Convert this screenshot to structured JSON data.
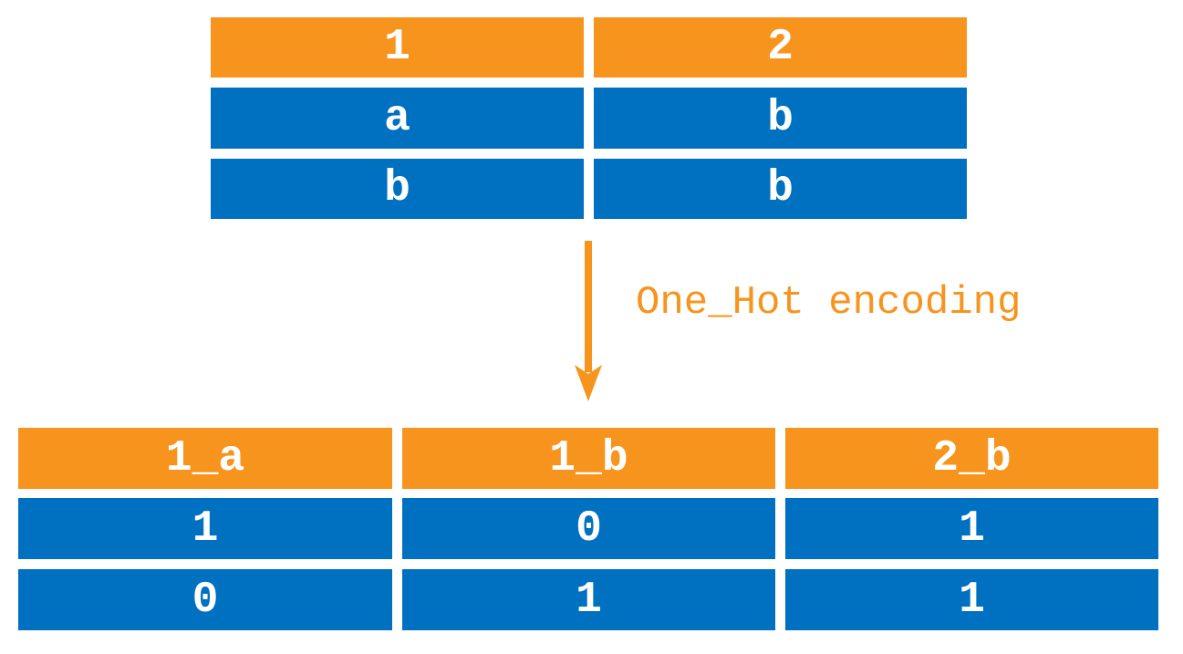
{
  "colors": {
    "header": "#F7941D",
    "cell": "#0070C0",
    "text": "#FFFFFF",
    "arrow": "#F7941D",
    "label": "#F7941D"
  },
  "input_table": {
    "headers": [
      "1",
      "2"
    ],
    "rows": [
      [
        "a",
        "b"
      ],
      [
        "b",
        "b"
      ]
    ]
  },
  "transform": {
    "label": "One_Hot encoding",
    "icon": "arrow-down-icon"
  },
  "output_table": {
    "headers": [
      "1_a",
      "1_b",
      "2_b"
    ],
    "rows": [
      [
        "1",
        "0",
        "1"
      ],
      [
        "0",
        "1",
        "1"
      ]
    ]
  }
}
